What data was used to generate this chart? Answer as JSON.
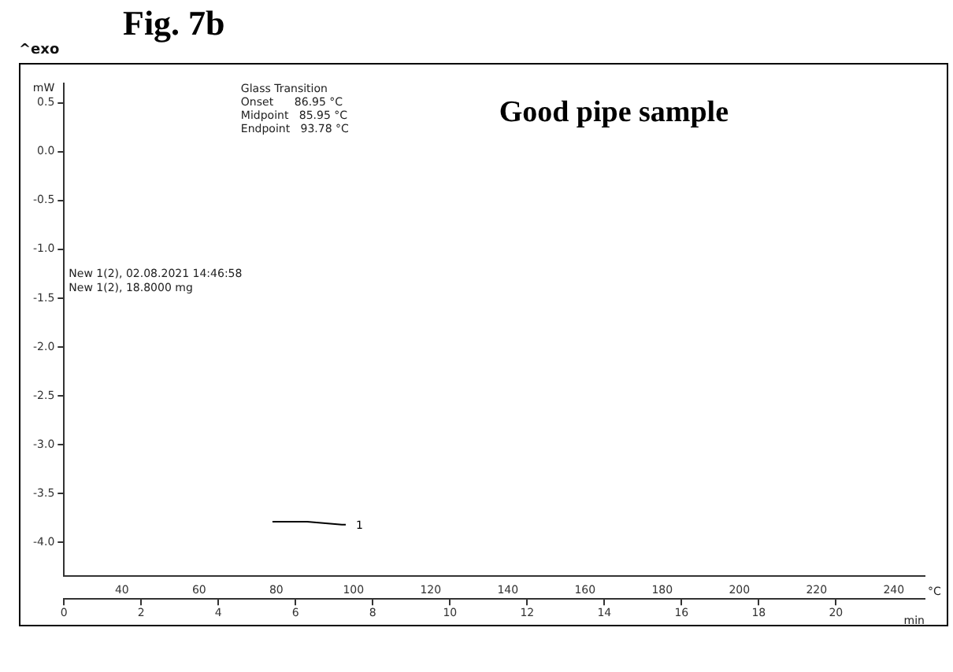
{
  "chart_data": {
    "type": "line",
    "title": "Fig. 7b",
    "ylabel": "mW",
    "xlabel": "°C",
    "x2label": "min",
    "annotations": [
      "^exo",
      "Good pipe sample",
      "Glass Transition\nOnset      86.95 °C\nMidpoint   85.95 °C\nEndpoint   93.78 °C",
      "New 1(2), 02.08.2021 14:46:58\nNew 1(2), 18.8000 mg",
      {
        "text": "1",
        "x": 99,
        "y": -3.82
      }
    ],
    "series": [
      {
        "color": "#000000",
        "x": [
          79,
          82,
          85,
          88,
          91,
          94,
          97,
          98
        ],
        "values": [
          -3.79,
          -3.79,
          -3.79,
          -3.79,
          -3.8,
          -3.81,
          -3.82,
          -3.82
        ]
      }
    ],
    "xlim": [
      25,
      248
    ],
    "xticks": [
      40,
      60,
      80,
      100,
      120,
      140,
      160,
      180,
      200,
      220,
      240
    ],
    "x2lim": [
      0,
      22.3
    ],
    "x2ticks": [
      0,
      2,
      4,
      6,
      8,
      10,
      12,
      14,
      16,
      18,
      20
    ],
    "ylim": [
      -4.35,
      0.7
    ],
    "yticks": [
      {
        "value": -4,
        "label": "-4.0"
      },
      -3.5,
      {
        "value": -3,
        "label": "-3.0"
      },
      -2.5,
      {
        "value": -2,
        "label": "-2.0"
      },
      -1.5,
      {
        "value": -1,
        "label": "-1.0"
      },
      -0.5,
      {
        "value": 0,
        "label": "0.0"
      },
      0.5
    ],
    "grid": false,
    "legend": false,
    "marker": "none",
    "line_style": "solid"
  }
}
